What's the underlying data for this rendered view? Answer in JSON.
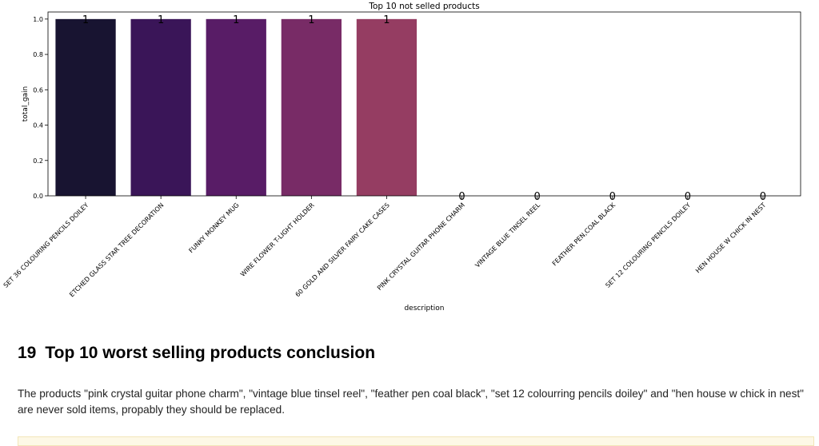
{
  "chart_data": {
    "type": "bar",
    "title": "Top 10 not selled products",
    "xlabel": "description",
    "ylabel": "total_gain",
    "ylim": [
      0,
      1.04
    ],
    "yticks": [
      "0.0",
      "0.2",
      "0.4",
      "0.6",
      "0.8",
      "1.0"
    ],
    "grid": false,
    "legend": "none",
    "palette": "magma",
    "categories": [
      "SET 36 COLOURING PENCILS DOILEY",
      "ETCHED GLASS STAR TREE DECORATION",
      "FUNKY MONKEY MUG",
      "WIRE FLOWER T-LIGHT HOLDER",
      "60 GOLD AND SILVER FAIRY CAKE CASES",
      "PINK CRYSTAL GUITAR PHONE CHARM",
      "VINTAGE BLUE TINSEL REEL",
      "FEATHER PEN,COAL BLACK",
      "SET 12 COLOURING PENCILS DOILEY",
      "HEN HOUSE W CHICK IN NEST"
    ],
    "values": [
      1,
      1,
      1,
      1,
      1,
      0,
      0,
      0,
      0,
      0
    ],
    "value_labels": [
      "1",
      "1",
      "1",
      "1",
      "1",
      "0",
      "0",
      "0",
      "0",
      "0"
    ],
    "colors": [
      "#181431",
      "#3a1558",
      "#581c66",
      "#782b66",
      "#953d62",
      "#b24f59",
      "#cc6450",
      "#de7f4a",
      "#e99c50",
      "#f0b75c"
    ]
  },
  "section": {
    "number": "19",
    "title": "Top 10 worst selling products conclusion"
  },
  "conclusion_text": "The products \"pink crystal guitar phone charm\", \"vintage blue tinsel reel\", \"feather pen coal black\", \"set 12 colourring pencils doiley\" and \"hen house w chick in nest\" are never sold items, propably they should be replaced."
}
